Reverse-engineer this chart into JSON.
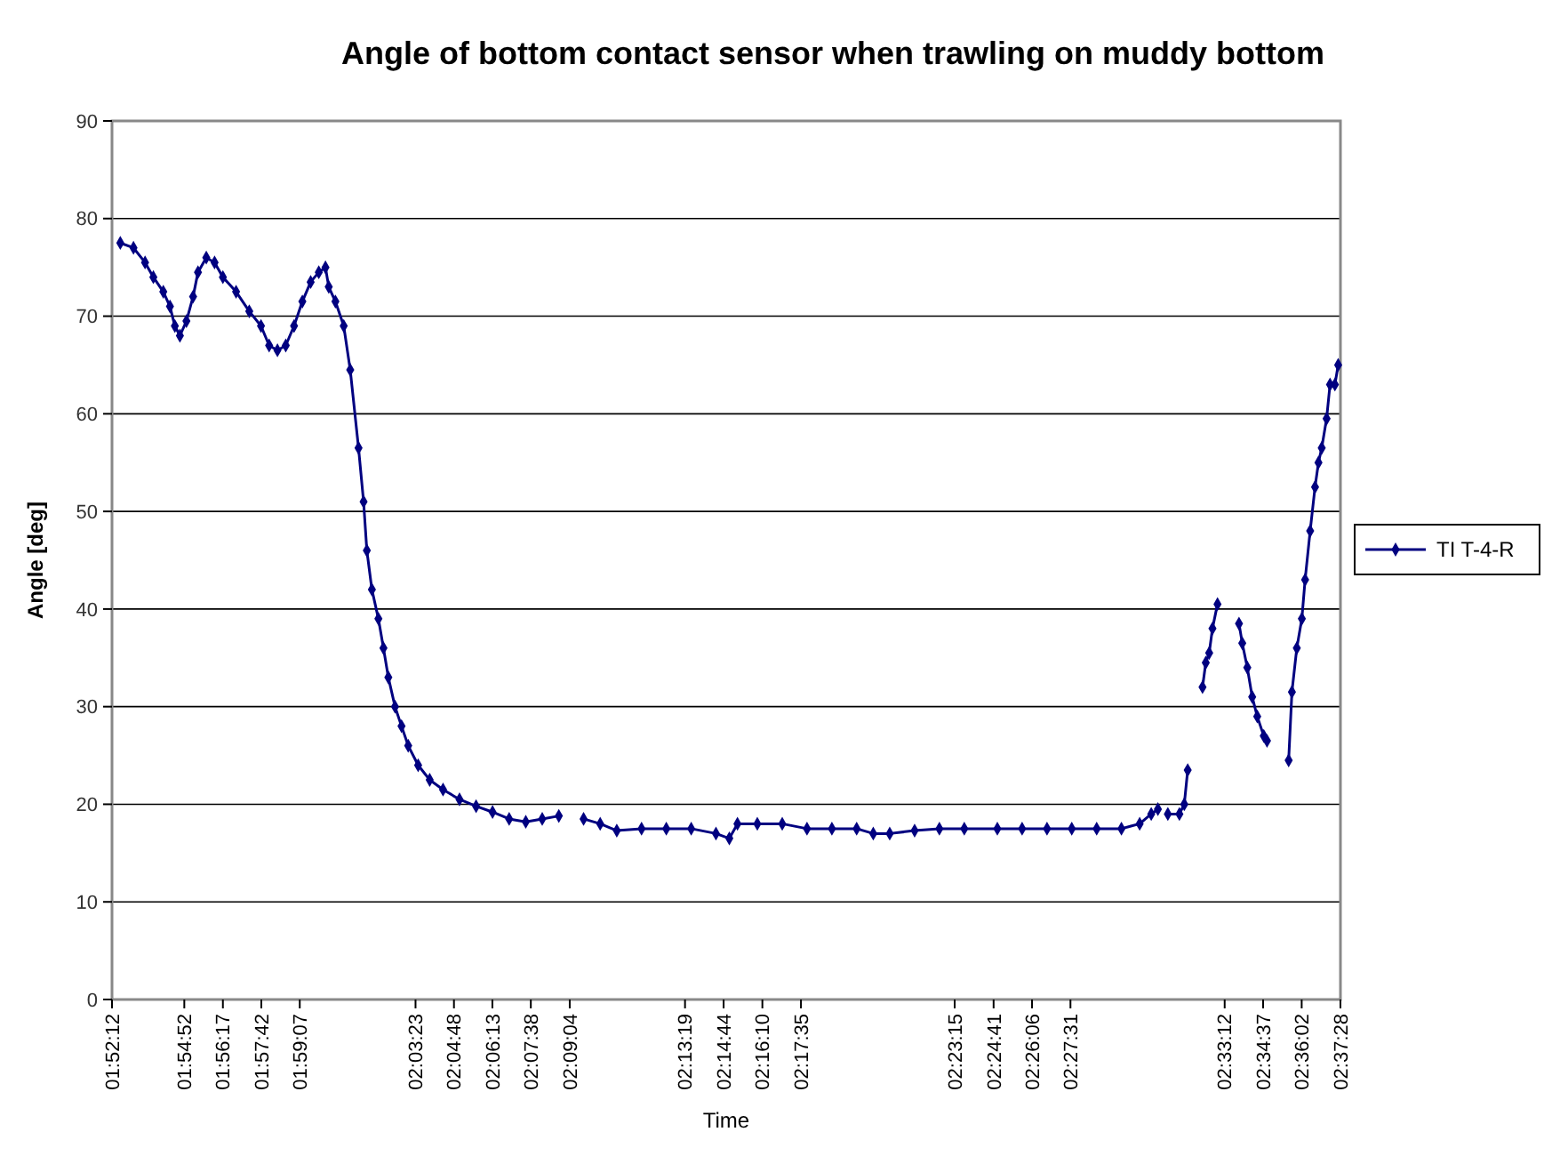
{
  "chart_data": {
    "type": "line",
    "title": "Angle of bottom contact sensor when trawling on muddy bottom",
    "xlabel": "Time",
    "ylabel": "Angle [deg]",
    "x": [
      1.8751,
      1.8832,
      1.8903,
      1.8954,
      1.9015,
      1.9056,
      1.9086,
      1.9117,
      1.9157,
      1.9198,
      1.9228,
      1.9279,
      1.933,
      1.9381,
      1.9462,
      1.9543,
      1.9615,
      1.9665,
      1.9716,
      1.9767,
      1.9818,
      1.9869,
      1.992,
      1.997,
      2.0011,
      2.0031,
      2.0072,
      2.0123,
      2.0163,
      2.0214,
      2.0245,
      2.0265,
      2.0296,
      2.0336,
      2.0367,
      2.0397,
      2.0438,
      2.0478,
      2.0519,
      2.058,
      2.0651,
      2.0733,
      2.0834,
      2.0936,
      2.1037,
      2.1139,
      2.1241,
      2.1342,
      2.1444,
      2.1515,
      2.1596,
      2.1698,
      2.18,
      2.1952,
      2.2104,
      2.2257,
      2.2409,
      2.2491,
      2.2541,
      2.2663,
      2.2816,
      2.2968,
      2.3121,
      2.3273,
      2.3375,
      2.3476,
      2.3629,
      2.3781,
      2.3934,
      2.4137,
      2.4289,
      2.4442,
      2.4594,
      2.4747,
      2.4899,
      2.5011,
      2.5082,
      2.5123,
      2.5153,
      2.5184,
      2.5255,
      2.5285,
      2.5306,
      2.5346,
      2.5397,
      2.5417,
      2.5438,
      2.5458,
      2.5489,
      2.556,
      2.5621,
      2.5641,
      2.5672,
      2.5702,
      2.5733,
      2.5773,
      2.5793,
      2.5865,
      2.5926,
      2.5946,
      2.5976,
      2.6007,
      2.6027,
      2.6058,
      2.6088,
      2.6109,
      2.6129,
      2.6159,
      2.618,
      2.621,
      2.623
    ],
    "series": [
      {
        "name": "TI T-4-R",
        "color": "#000080",
        "values": [
          77.5,
          77,
          75.5,
          74,
          72.5,
          71,
          69,
          68,
          69.5,
          72,
          74.5,
          76,
          75.5,
          74,
          72.5,
          70.5,
          69,
          67,
          66.5,
          67,
          69,
          71.5,
          73.5,
          74.5,
          75,
          73,
          71.5,
          69,
          64.5,
          56.5,
          51,
          46,
          42,
          39,
          36,
          33,
          30,
          28,
          26,
          24,
          22.5,
          21.5,
          20.5,
          19.8,
          19.2,
          18.5,
          18.2,
          18.5,
          18.8,
          null,
          18.5,
          18,
          17.3,
          17.5,
          17.5,
          17.5,
          17,
          16.5,
          18,
          18,
          18,
          17.5,
          17.5,
          17.5,
          17,
          17,
          17.3,
          17.5,
          17.5,
          17.5,
          17.5,
          17.5,
          17.5,
          17.5,
          17.5,
          18,
          19,
          19.5,
          null,
          19,
          19,
          20,
          23.5,
          null,
          32,
          34.5,
          35.5,
          38,
          40.5,
          null,
          38.5,
          36.5,
          34,
          31,
          29,
          27,
          26.5,
          null,
          24.5,
          31.5,
          36,
          39,
          43,
          48,
          52.5,
          55,
          56.5,
          59.5,
          63,
          63,
          65
        ]
      }
    ],
    "xlim": [
      1.87,
      2.6244
    ],
    "xticks": [
      {
        "value": 1.87,
        "label": "01:52:12"
      },
      {
        "value": 1.9144,
        "label": "01:54:52"
      },
      {
        "value": 1.9381,
        "label": "01:56:17"
      },
      {
        "value": 1.9617,
        "label": "01:57:42"
      },
      {
        "value": 1.9853,
        "label": "01:59:07"
      },
      {
        "value": 2.0564,
        "label": "02:03:23"
      },
      {
        "value": 2.08,
        "label": "02:04:48"
      },
      {
        "value": 2.1036,
        "label": "02:06:13"
      },
      {
        "value": 2.1272,
        "label": "02:07:38"
      },
      {
        "value": 2.1511,
        "label": "02:09:04"
      },
      {
        "value": 2.2219,
        "label": "02:13:19"
      },
      {
        "value": 2.2456,
        "label": "02:14:44"
      },
      {
        "value": 2.2694,
        "label": "02:16:10"
      },
      {
        "value": 2.2931,
        "label": "02:17:35"
      },
      {
        "value": 2.3875,
        "label": "02:23:15"
      },
      {
        "value": 2.4114,
        "label": "02:24:41"
      },
      {
        "value": 2.435,
        "label": "02:26:06"
      },
      {
        "value": 2.4586,
        "label": "02:27:31"
      },
      {
        "value": 2.5533,
        "label": "02:33:12"
      },
      {
        "value": 2.5769,
        "label": "02:34:37"
      },
      {
        "value": 2.6006,
        "label": "02:36:02"
      },
      {
        "value": 2.6244,
        "label": "02:37:28"
      }
    ],
    "ylim": [
      0,
      90
    ],
    "yticks": [
      0,
      10,
      20,
      30,
      40,
      50,
      60,
      70,
      80,
      90
    ],
    "grid": "y",
    "legend": "right",
    "marker": "diamond",
    "line_style": "solid"
  }
}
